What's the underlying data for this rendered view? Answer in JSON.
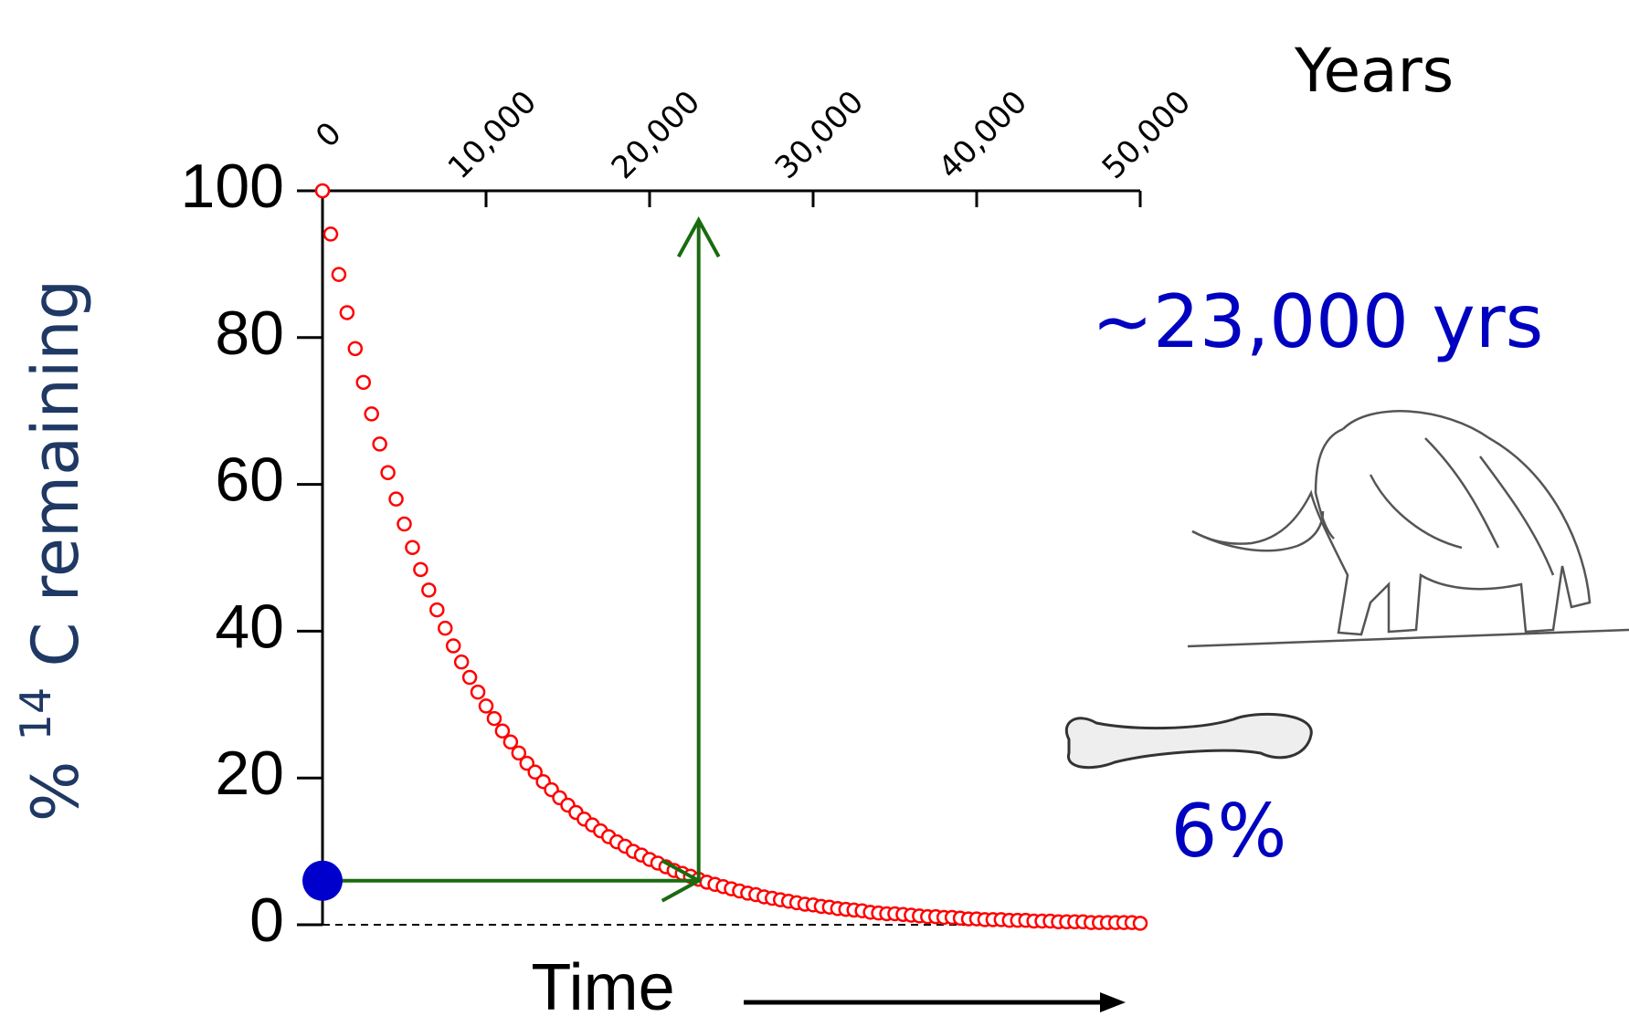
{
  "chart_data": {
    "type": "scatter",
    "x_axis_title": "Years",
    "ylabel_parts": [
      "%",
      "14",
      "C remaining"
    ],
    "time_label": "Time",
    "annotation_age": "~23,000 yrs",
    "annotation_percent": "6%",
    "xlim": [
      0,
      50000
    ],
    "ylim": [
      0,
      100
    ],
    "xticks": [
      0,
      {
        "value": 10000,
        "label": "10,000"
      },
      {
        "value": 20000,
        "label": "20,000"
      },
      {
        "value": 30000,
        "label": "30,000"
      },
      {
        "value": 40000,
        "label": "40,000"
      },
      {
        "value": 50000,
        "label": "50,000"
      }
    ],
    "yticks": [
      0,
      20,
      40,
      60,
      80,
      100
    ],
    "marker": {
      "x": 0,
      "y": 6,
      "color": "#0000cc"
    },
    "result_x": 23000,
    "arrow_top": 96,
    "arrow_color": "#1a6b10",
    "series": [
      {
        "color": "#ff0000",
        "x": [
          0,
          500,
          1000,
          1500,
          2000,
          2500,
          3000,
          3500,
          4000,
          4500,
          5000,
          5500,
          6000,
          6500,
          7000,
          7500,
          8000,
          8500,
          9000,
          9500,
          10000,
          10500,
          11000,
          11500,
          12000,
          12500,
          13000,
          13500,
          14000,
          14500,
          15000,
          15500,
          16000,
          16500,
          17000,
          17500,
          18000,
          18500,
          19000,
          19500,
          20000,
          20500,
          21000,
          21500,
          22000,
          22500,
          23000,
          23500,
          24000,
          24500,
          25000,
          25500,
          26000,
          26500,
          27000,
          27500,
          28000,
          28500,
          29000,
          29500,
          30000,
          30500,
          31000,
          31500,
          32000,
          32500,
          33000,
          33500,
          34000,
          34500,
          35000,
          35500,
          36000,
          36500,
          37000,
          37500,
          38000,
          38500,
          39000,
          39500,
          40000,
          40500,
          41000,
          41500,
          42000,
          42500,
          43000,
          43500,
          44000,
          44500,
          45000,
          45500,
          46000,
          46500,
          47000,
          47500,
          48000,
          48500,
          49000,
          49500,
          50000
        ],
        "values": [
          100,
          94.1,
          88.6,
          83.4,
          78.5,
          73.9,
          69.6,
          65.5,
          61.6,
          58.0,
          54.6,
          51.4,
          48.4,
          45.6,
          42.9,
          40.4,
          38.0,
          35.8,
          33.7,
          31.7,
          29.8,
          28.1,
          26.4,
          24.9,
          23.4,
          22.0,
          20.8,
          19.5,
          18.4,
          17.3,
          16.3,
          15.3,
          14.4,
          13.6,
          12.8,
          12.0,
          11.3,
          10.7,
          10.0,
          9.5,
          8.9,
          8.4,
          7.9,
          7.4,
          7.0,
          6.6,
          6.2,
          5.8,
          5.5,
          5.2,
          4.9,
          4.6,
          4.3,
          4.1,
          3.8,
          3.6,
          3.4,
          3.2,
          3.0,
          2.8,
          2.7,
          2.5,
          2.4,
          2.2,
          2.1,
          2.0,
          1.9,
          1.7,
          1.6,
          1.5,
          1.5,
          1.4,
          1.3,
          1.2,
          1.1,
          1.1,
          1.0,
          1.0,
          0.9,
          0.8,
          0.8,
          0.7,
          0.7,
          0.7,
          0.6,
          0.6,
          0.6,
          0.5,
          0.5,
          0.5,
          0.4,
          0.4,
          0.4,
          0.4,
          0.3,
          0.3,
          0.3,
          0.3,
          0.3,
          0.3,
          0.2
        ]
      }
    ]
  }
}
